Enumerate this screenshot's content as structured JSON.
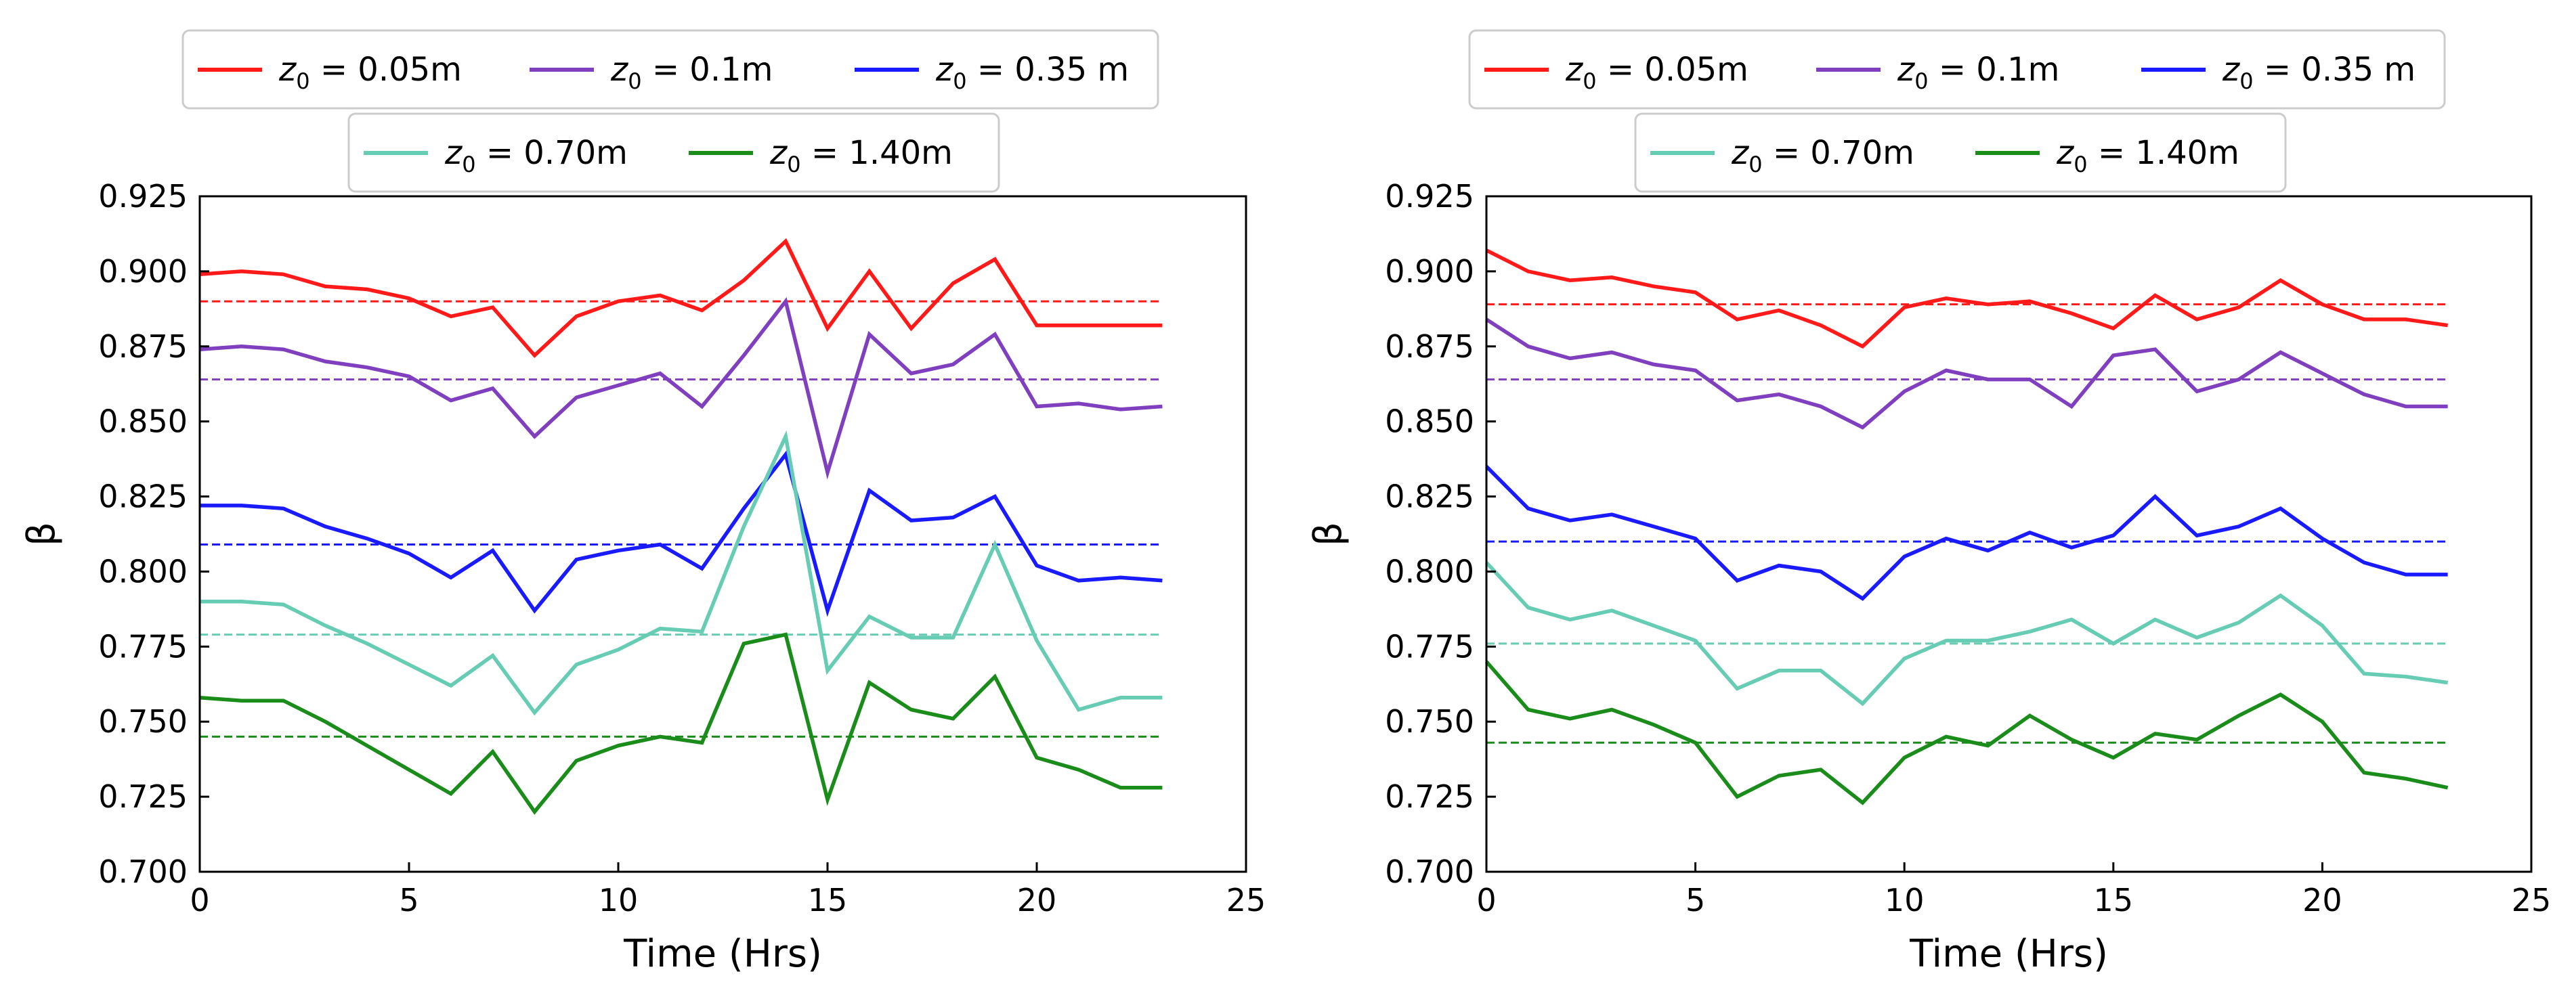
{
  "chart_data": [
    {
      "type": "line",
      "xlabel": "Time (Hrs)",
      "ylabel": "β",
      "xlim": [
        0,
        25
      ],
      "ylim": [
        0.7,
        0.925
      ],
      "xticks": [
        0,
        5,
        10,
        15,
        20,
        25
      ],
      "yticks": [
        0.7,
        0.725,
        0.75,
        0.775,
        0.8,
        0.825,
        0.85,
        0.875,
        0.9,
        0.925
      ],
      "xtick_labels": [
        "0",
        "5",
        "10",
        "15",
        "20",
        "25"
      ],
      "ytick_labels": [
        "0.700",
        "0.725",
        "0.750",
        "0.775",
        "0.800",
        "0.825",
        "0.850",
        "0.875",
        "0.900",
        "0.925"
      ],
      "legend_position": "top, two rows",
      "series": [
        {
          "name": "z0 = 0.05m",
          "label_main": "z",
          "label_sub": "0",
          "label_rest": " = 0.05m",
          "color": "#ff1a1a",
          "x": [
            0,
            1,
            2,
            3,
            4,
            5,
            6,
            7,
            8,
            9,
            10,
            11,
            12,
            13,
            14,
            15,
            16,
            17,
            18,
            19,
            20,
            21,
            22,
            23
          ],
          "values": [
            0.899,
            0.9,
            0.899,
            0.895,
            0.894,
            0.891,
            0.885,
            0.888,
            0.872,
            0.885,
            0.89,
            0.892,
            0.887,
            0.897,
            0.91,
            0.881,
            0.9,
            0.881,
            0.896,
            0.904,
            0.882,
            0.882,
            0.882,
            0.882
          ],
          "mean": 0.89
        },
        {
          "name": "z0 = 0.1m",
          "label_main": "z",
          "label_sub": "0",
          "label_rest": " = 0.1m",
          "color": "#7f3fbf",
          "x": [
            0,
            1,
            2,
            3,
            4,
            5,
            6,
            7,
            8,
            9,
            10,
            11,
            12,
            13,
            14,
            15,
            16,
            17,
            18,
            19,
            20,
            21,
            22,
            23
          ],
          "values": [
            0.874,
            0.875,
            0.874,
            0.87,
            0.868,
            0.865,
            0.857,
            0.861,
            0.845,
            0.858,
            0.862,
            0.866,
            0.855,
            0.872,
            0.89,
            0.833,
            0.879,
            0.866,
            0.869,
            0.879,
            0.855,
            0.856,
            0.854,
            0.855
          ],
          "mean": 0.864
        },
        {
          "name": "z0 = 0.35 m",
          "label_main": "z",
          "label_sub": "0",
          "label_rest": " = 0.35 m",
          "color": "#1a1aff",
          "x": [
            0,
            1,
            2,
            3,
            4,
            5,
            6,
            7,
            8,
            9,
            10,
            11,
            12,
            13,
            14,
            15,
            16,
            17,
            18,
            19,
            20,
            21,
            22,
            23
          ],
          "values": [
            0.822,
            0.822,
            0.821,
            0.815,
            0.811,
            0.806,
            0.798,
            0.807,
            0.787,
            0.804,
            0.807,
            0.809,
            0.801,
            0.821,
            0.839,
            0.787,
            0.827,
            0.817,
            0.818,
            0.825,
            0.802,
            0.797,
            0.798,
            0.797
          ],
          "mean": 0.809
        },
        {
          "name": "z0 = 0.70m",
          "label_main": "z",
          "label_sub": "0",
          "label_rest": " = 0.70m",
          "color": "#66ccb3",
          "x": [
            0,
            1,
            2,
            3,
            4,
            5,
            6,
            7,
            8,
            9,
            10,
            11,
            12,
            13,
            14,
            15,
            16,
            17,
            18,
            19,
            20,
            21,
            22,
            23
          ],
          "values": [
            0.79,
            0.79,
            0.789,
            0.782,
            0.776,
            0.769,
            0.762,
            0.772,
            0.753,
            0.769,
            0.774,
            0.781,
            0.78,
            0.815,
            0.845,
            0.767,
            0.785,
            0.778,
            0.778,
            0.809,
            0.777,
            0.754,
            0.758,
            0.758
          ],
          "mean": 0.779
        },
        {
          "name": "z0 = 1.40m",
          "label_main": "z",
          "label_sub": "0",
          "label_rest": " = 1.40m",
          "color": "#1a8c1a",
          "x": [
            0,
            1,
            2,
            3,
            4,
            5,
            6,
            7,
            8,
            9,
            10,
            11,
            12,
            13,
            14,
            15,
            16,
            17,
            18,
            19,
            20,
            21,
            22,
            23
          ],
          "values": [
            0.758,
            0.757,
            0.757,
            0.75,
            0.742,
            0.734,
            0.726,
            0.74,
            0.72,
            0.737,
            0.742,
            0.745,
            0.743,
            0.776,
            0.779,
            0.724,
            0.763,
            0.754,
            0.751,
            0.765,
            0.738,
            0.734,
            0.728,
            0.728
          ],
          "mean": 0.745
        }
      ]
    },
    {
      "type": "line",
      "xlabel": "Time (Hrs)",
      "ylabel": "β",
      "xlim": [
        0,
        25
      ],
      "ylim": [
        0.7,
        0.925
      ],
      "xticks": [
        0,
        5,
        10,
        15,
        20,
        25
      ],
      "yticks": [
        0.7,
        0.725,
        0.75,
        0.775,
        0.8,
        0.825,
        0.85,
        0.875,
        0.9,
        0.925
      ],
      "xtick_labels": [
        "0",
        "5",
        "10",
        "15",
        "20",
        "25"
      ],
      "ytick_labels": [
        "0.700",
        "0.725",
        "0.750",
        "0.775",
        "0.800",
        "0.825",
        "0.850",
        "0.875",
        "0.900",
        "0.925"
      ],
      "legend_position": "top, two rows",
      "series": [
        {
          "name": "z0 = 0.05m",
          "label_main": "z",
          "label_sub": "0",
          "label_rest": " = 0.05m",
          "color": "#ff1a1a",
          "x": [
            0,
            1,
            2,
            3,
            4,
            5,
            6,
            7,
            8,
            9,
            10,
            11,
            12,
            13,
            14,
            15,
            16,
            17,
            18,
            19,
            20,
            21,
            22,
            23
          ],
          "values": [
            0.907,
            0.9,
            0.897,
            0.898,
            0.895,
            0.893,
            0.884,
            0.887,
            0.882,
            0.875,
            0.888,
            0.891,
            0.889,
            0.89,
            0.886,
            0.881,
            0.892,
            0.884,
            0.888,
            0.897,
            0.889,
            0.884,
            0.884,
            0.882
          ],
          "mean": 0.889
        },
        {
          "name": "z0 = 0.1m",
          "label_main": "z",
          "label_sub": "0",
          "label_rest": " = 0.1m",
          "color": "#7f3fbf",
          "x": [
            0,
            1,
            2,
            3,
            4,
            5,
            6,
            7,
            8,
            9,
            10,
            11,
            12,
            13,
            14,
            15,
            16,
            17,
            18,
            19,
            20,
            21,
            22,
            23
          ],
          "values": [
            0.884,
            0.875,
            0.871,
            0.873,
            0.869,
            0.867,
            0.857,
            0.859,
            0.855,
            0.848,
            0.86,
            0.867,
            0.864,
            0.864,
            0.855,
            0.872,
            0.874,
            0.86,
            0.864,
            0.873,
            0.866,
            0.859,
            0.855,
            0.855
          ],
          "mean": 0.864
        },
        {
          "name": "z0 = 0.35 m",
          "label_main": "z",
          "label_sub": "0",
          "label_rest": " = 0.35 m",
          "color": "#1a1aff",
          "x": [
            0,
            1,
            2,
            3,
            4,
            5,
            6,
            7,
            8,
            9,
            10,
            11,
            12,
            13,
            14,
            15,
            16,
            17,
            18,
            19,
            20,
            21,
            22,
            23
          ],
          "values": [
            0.835,
            0.821,
            0.817,
            0.819,
            0.815,
            0.811,
            0.797,
            0.802,
            0.8,
            0.791,
            0.805,
            0.811,
            0.807,
            0.813,
            0.808,
            0.812,
            0.825,
            0.812,
            0.815,
            0.821,
            0.811,
            0.803,
            0.799,
            0.799
          ],
          "mean": 0.81
        },
        {
          "name": "z0 = 0.70m",
          "label_main": "z",
          "label_sub": "0",
          "label_rest": " = 0.70m",
          "color": "#66ccb3",
          "x": [
            0,
            1,
            2,
            3,
            4,
            5,
            6,
            7,
            8,
            9,
            10,
            11,
            12,
            13,
            14,
            15,
            16,
            17,
            18,
            19,
            20,
            21,
            22,
            23
          ],
          "values": [
            0.803,
            0.788,
            0.784,
            0.787,
            0.782,
            0.777,
            0.761,
            0.767,
            0.767,
            0.756,
            0.771,
            0.777,
            0.777,
            0.78,
            0.784,
            0.776,
            0.784,
            0.778,
            0.783,
            0.792,
            0.782,
            0.766,
            0.765,
            0.763
          ],
          "mean": 0.776
        },
        {
          "name": "z0 = 1.40m",
          "label_main": "z",
          "label_sub": "0",
          "label_rest": " = 1.40m",
          "color": "#1a8c1a",
          "x": [
            0,
            1,
            2,
            3,
            4,
            5,
            6,
            7,
            8,
            9,
            10,
            11,
            12,
            13,
            14,
            15,
            16,
            17,
            18,
            19,
            20,
            21,
            22,
            23
          ],
          "values": [
            0.77,
            0.754,
            0.751,
            0.754,
            0.749,
            0.743,
            0.725,
            0.732,
            0.734,
            0.723,
            0.738,
            0.745,
            0.742,
            0.752,
            0.744,
            0.738,
            0.746,
            0.744,
            0.752,
            0.759,
            0.75,
            0.733,
            0.731,
            0.728
          ],
          "mean": 0.743
        }
      ]
    }
  ]
}
